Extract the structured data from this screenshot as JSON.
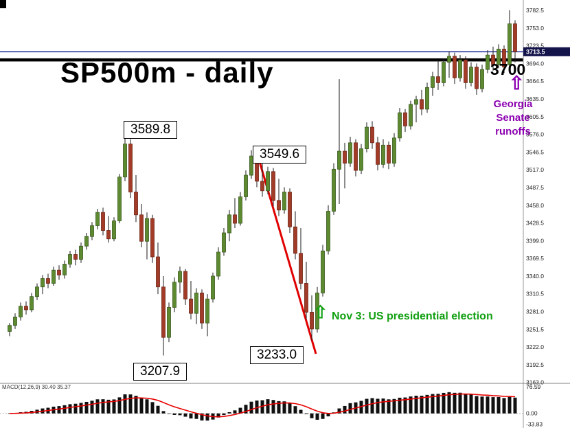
{
  "annotations": {
    "title": "SP500m - daily",
    "high1": "3589.8",
    "high2": "3549.6",
    "low1": "3207.9",
    "low2": "3233.0",
    "level_3700": "3700",
    "georgia": "Georgia\nSenate\nrunoffs",
    "nov3": "Nov 3: US presidential election",
    "up_arrow": "⇧"
  },
  "colors": {
    "bull": "#5d8a31",
    "bull_stroke": "#39591c",
    "bear": "#a23b28",
    "bear_stroke": "#6f2516",
    "wick": "#1a1a1a",
    "trend_line": "#e00000",
    "level_line": "#000000",
    "current_price_line": "#2b3a9e",
    "price_tag_bg": "#14144b",
    "macd_bar": "#101010",
    "macd_signal": "#e80000",
    "purple": "#8b00b0",
    "green": "#12a012"
  },
  "chart_data": {
    "type": "candlestick",
    "title": "SP500m - daily",
    "symbol": "SP500m",
    "timeframe": "daily",
    "ohlc_format": [
      "open",
      "high",
      "low",
      "close"
    ],
    "current_price": "3713.5",
    "levels": {
      "horizontal_black_line": 3700,
      "current_price_line": 3713.5
    },
    "key_points": {
      "peak1": 3589.8,
      "peak2": 3549.6,
      "low1": 3207.9,
      "low2": 3233.0,
      "top_spike": 3782.5
    },
    "y_axis": {
      "top_value": 3782.5,
      "tick_step": 29.5,
      "ticks": [
        "3782.5",
        "3753.0",
        "3723.5",
        "3694.0",
        "3664.5",
        "3635.0",
        "3605.5",
        "3576.0",
        "3546.5",
        "3517.0",
        "3487.5",
        "3458.0",
        "3428.5",
        "3399.0",
        "3369.5",
        "3340.0",
        "3310.5",
        "3281.0",
        "3251.5",
        "3222.0",
        "3192.5",
        "3163.0"
      ]
    },
    "indicator": {
      "label": "MACD(12,26,9) 30.40 35.37",
      "name": "MACD",
      "params": [
        12,
        26,
        9
      ],
      "shown_values": [
        30.4,
        35.37
      ],
      "axis_ticks": [
        "76.59",
        "0.00",
        "-33.83"
      ]
    },
    "candles": [
      [
        3248,
        3262,
        3240,
        3258
      ],
      [
        3258,
        3278,
        3252,
        3272
      ],
      [
        3272,
        3296,
        3266,
        3290
      ],
      [
        3290,
        3298,
        3276,
        3284
      ],
      [
        3284,
        3312,
        3280,
        3306
      ],
      [
        3306,
        3328,
        3300,
        3322
      ],
      [
        3322,
        3342,
        3310,
        3336
      ],
      [
        3336,
        3344,
        3320,
        3328
      ],
      [
        3328,
        3356,
        3324,
        3350
      ],
      [
        3350,
        3358,
        3334,
        3342
      ],
      [
        3342,
        3366,
        3336,
        3360
      ],
      [
        3360,
        3382,
        3354,
        3376
      ],
      [
        3376,
        3384,
        3358,
        3368
      ],
      [
        3368,
        3396,
        3362,
        3390
      ],
      [
        3390,
        3412,
        3384,
        3406
      ],
      [
        3406,
        3430,
        3400,
        3424
      ],
      [
        3424,
        3452,
        3418,
        3446
      ],
      [
        3446,
        3454,
        3408,
        3416
      ],
      [
        3416,
        3440,
        3396,
        3402
      ],
      [
        3402,
        3438,
        3398,
        3432
      ],
      [
        3432,
        3510,
        3428,
        3505
      ],
      [
        3505,
        3589.8,
        3498,
        3560
      ],
      [
        3560,
        3568,
        3470,
        3480
      ],
      [
        3480,
        3508,
        3430,
        3442
      ],
      [
        3442,
        3460,
        3388,
        3398
      ],
      [
        3398,
        3446,
        3368,
        3436
      ],
      [
        3436,
        3442,
        3362,
        3372
      ],
      [
        3372,
        3396,
        3310,
        3322
      ],
      [
        3322,
        3340,
        3207.9,
        3238
      ],
      [
        3238,
        3296,
        3230,
        3288
      ],
      [
        3288,
        3338,
        3280,
        3330
      ],
      [
        3330,
        3356,
        3312,
        3348
      ],
      [
        3348,
        3352,
        3292,
        3302
      ],
      [
        3302,
        3332,
        3268,
        3278
      ],
      [
        3278,
        3320,
        3260,
        3312
      ],
      [
        3312,
        3318,
        3252,
        3262
      ],
      [
        3262,
        3310,
        3240,
        3302
      ],
      [
        3302,
        3346,
        3296,
        3340
      ],
      [
        3340,
        3388,
        3334,
        3380
      ],
      [
        3380,
        3420,
        3374,
        3412
      ],
      [
        3412,
        3450,
        3398,
        3442
      ],
      [
        3442,
        3470,
        3420,
        3428
      ],
      [
        3428,
        3480,
        3424,
        3472
      ],
      [
        3472,
        3516,
        3466,
        3508
      ],
      [
        3508,
        3549.6,
        3502,
        3540
      ],
      [
        3540,
        3546,
        3488,
        3498
      ],
      [
        3498,
        3528,
        3472,
        3482
      ],
      [
        3482,
        3522,
        3476,
        3514
      ],
      [
        3514,
        3520,
        3456,
        3466
      ],
      [
        3466,
        3502,
        3440,
        3450
      ],
      [
        3450,
        3488,
        3444,
        3480
      ],
      [
        3480,
        3486,
        3412,
        3422
      ],
      [
        3422,
        3448,
        3368,
        3378
      ],
      [
        3378,
        3420,
        3318,
        3328
      ],
      [
        3328,
        3364,
        3268,
        3280
      ],
      [
        3280,
        3308,
        3233.0,
        3252
      ],
      [
        3252,
        3322,
        3246,
        3312
      ],
      [
        3312,
        3392,
        3306,
        3382
      ],
      [
        3382,
        3458,
        3376,
        3448
      ],
      [
        3448,
        3528,
        3442,
        3518
      ],
      [
        3518,
        3668,
        3460,
        3548
      ],
      [
        3548,
        3562,
        3486,
        3528
      ],
      [
        3528,
        3572,
        3522,
        3562
      ],
      [
        3562,
        3568,
        3506,
        3516
      ],
      [
        3516,
        3560,
        3510,
        3552
      ],
      [
        3552,
        3596,
        3546,
        3588
      ],
      [
        3588,
        3598,
        3552,
        3562
      ],
      [
        3562,
        3572,
        3516,
        3526
      ],
      [
        3526,
        3568,
        3520,
        3558
      ],
      [
        3558,
        3564,
        3518,
        3528
      ],
      [
        3528,
        3578,
        3522,
        3570
      ],
      [
        3570,
        3620,
        3564,
        3612
      ],
      [
        3612,
        3618,
        3580,
        3590
      ],
      [
        3590,
        3632,
        3584,
        3626
      ],
      [
        3626,
        3640,
        3596,
        3634
      ],
      [
        3634,
        3650,
        3608,
        3618
      ],
      [
        3618,
        3662,
        3612,
        3654
      ],
      [
        3654,
        3680,
        3640,
        3672
      ],
      [
        3672,
        3700,
        3650,
        3662
      ],
      [
        3662,
        3702,
        3656,
        3696
      ],
      [
        3696,
        3714,
        3670,
        3706
      ],
      [
        3706,
        3712,
        3660,
        3670
      ],
      [
        3670,
        3708,
        3664,
        3700
      ],
      [
        3700,
        3706,
        3652,
        3662
      ],
      [
        3662,
        3696,
        3656,
        3688
      ],
      [
        3688,
        3694,
        3642,
        3652
      ],
      [
        3652,
        3692,
        3646,
        3684
      ],
      [
        3684,
        3716,
        3678,
        3708
      ],
      [
        3708,
        3722,
        3682,
        3692
      ],
      [
        3692,
        3726,
        3686,
        3718
      ],
      [
        3718,
        3724,
        3678,
        3688
      ],
      [
        3692,
        3782.5,
        3686,
        3760
      ],
      [
        3760,
        3766,
        3696,
        3713.5
      ]
    ]
  }
}
